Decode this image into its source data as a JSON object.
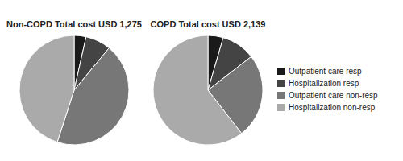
{
  "chart_data": [
    {
      "type": "pie",
      "title": "Non-COPD Total cost USD 1,275",
      "values": [
        3.5,
        7.5,
        44,
        45
      ],
      "colors": [
        "#1a1a1a",
        "#444444",
        "#777777",
        "#aaaaaa"
      ]
    },
    {
      "type": "pie",
      "title": "COPD Total cost USD 2,139",
      "categories": [
        "Outpatient care resp",
        "Hospitalization resp",
        "Outpatient care non-resp",
        "Hospitalization non-resp"
      ],
      "values": [
        4.5,
        10,
        25,
        60.5
      ],
      "colors": [
        "#1a1a1a",
        "#444444",
        "#777777",
        "#aaaaaa"
      ],
      "legend": "right"
    }
  ]
}
